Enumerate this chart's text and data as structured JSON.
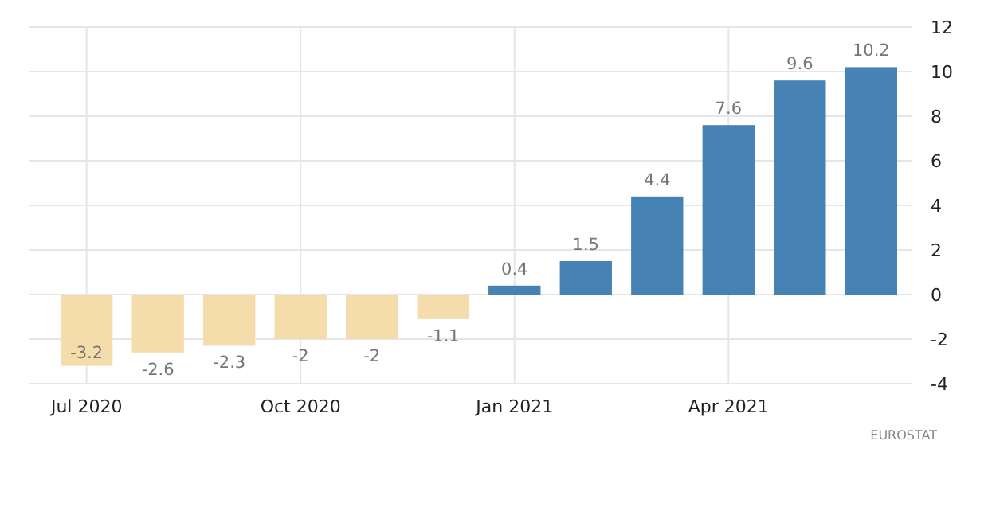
{
  "chart_data": {
    "type": "bar",
    "categories": [
      "Jul 2020",
      null,
      null,
      "Oct 2020",
      null,
      null,
      "Jan 2021",
      null,
      null,
      "Apr 2021",
      null,
      null
    ],
    "values": [
      -3.2,
      -2.6,
      -2.3,
      -2,
      -2,
      -1.1,
      0.4,
      1.5,
      4.4,
      7.6,
      9.6,
      10.2
    ],
    "colors": [
      "#f5dcab",
      "#f5dcab",
      "#f5dcab",
      "#f5dcab",
      "#f5dcab",
      "#f5dcab",
      "#4682b4",
      "#4682b4",
      "#4682b4",
      "#4682b4",
      "#4682b4",
      "#4682b4"
    ],
    "ylim": [
      -4,
      12
    ],
    "yticks": [
      -4,
      -2,
      0,
      2,
      4,
      6,
      8,
      10,
      12
    ],
    "grid": true,
    "data_labels": true,
    "annotations": [
      "EUROSTAT"
    ]
  }
}
